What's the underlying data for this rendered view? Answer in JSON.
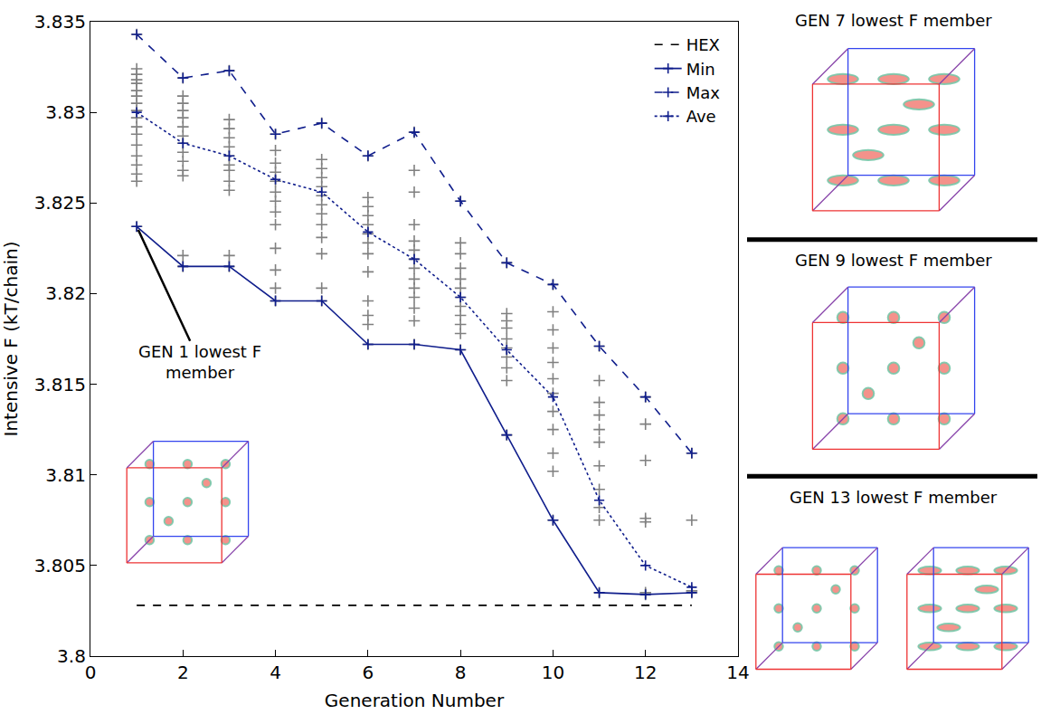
{
  "chart_data": {
    "type": "line",
    "x_label": "Generation Number",
    "y_label": "Intensive F (kT/chain)",
    "xlim": [
      0,
      14
    ],
    "xticks": [
      0,
      2,
      4,
      6,
      8,
      10,
      12,
      14
    ],
    "ylim": [
      3.8,
      3.835
    ],
    "yticks": [
      3.8,
      3.805,
      3.81,
      3.815,
      3.82,
      3.825,
      3.83,
      3.835
    ],
    "grid": false,
    "legend": "upper right",
    "series": [
      {
        "type": "scatter",
        "color": "#808080",
        "marker": "cross",
        "line_style": "none",
        "x": [
          1,
          1,
          1,
          1,
          1,
          1,
          1,
          1,
          1,
          1,
          1,
          1,
          1,
          1,
          1,
          1,
          1,
          1,
          2,
          2,
          2,
          2,
          2,
          2,
          2,
          2,
          2,
          2,
          2,
          2,
          2,
          2,
          3,
          3,
          3,
          3,
          3,
          3,
          3,
          3,
          3,
          3,
          3,
          3,
          4,
          4,
          4,
          4,
          4,
          4,
          4,
          4,
          4,
          4,
          4,
          4,
          4,
          5,
          5,
          5,
          5,
          5,
          5,
          5,
          5,
          5,
          5,
          5,
          5,
          5,
          6,
          6,
          6,
          6,
          6,
          6,
          6,
          6,
          6,
          6,
          6,
          6,
          6,
          7,
          7,
          7,
          7,
          7,
          7,
          7,
          7,
          7,
          7,
          7,
          7,
          7,
          7,
          8,
          8,
          8,
          8,
          8,
          8,
          8,
          8,
          8,
          8,
          8,
          8,
          9,
          9,
          9,
          9,
          9,
          9,
          9,
          9,
          9,
          9,
          10,
          10,
          10,
          10,
          10,
          10,
          10,
          10,
          10,
          10,
          10,
          10,
          11,
          11,
          11,
          11,
          11,
          11,
          11,
          11,
          11,
          11,
          11,
          12,
          12,
          12,
          12,
          12,
          12,
          12,
          13,
          13,
          13,
          13
        ],
        "values": [
          3.8237,
          3.8262,
          3.8266,
          3.8271,
          3.8276,
          3.8282,
          3.8288,
          3.8292,
          3.8297,
          3.8301,
          3.8305,
          3.8309,
          3.8312,
          3.8316,
          3.8318,
          3.8321,
          3.8324,
          3.8343,
          3.8215,
          3.8221,
          3.8265,
          3.8268,
          3.8273,
          3.8278,
          3.8283,
          3.8287,
          3.8292,
          3.8297,
          3.8301,
          3.8305,
          3.8309,
          3.8319,
          3.8215,
          3.8221,
          3.8257,
          3.8262,
          3.8268,
          3.8271,
          3.8276,
          3.8281,
          3.8286,
          3.8291,
          3.8296,
          3.8323,
          3.8196,
          3.8203,
          3.8213,
          3.8225,
          3.8238,
          3.8245,
          3.8251,
          3.8256,
          3.8262,
          3.8267,
          3.8272,
          3.8279,
          3.8288,
          3.8196,
          3.8203,
          3.8222,
          3.8231,
          3.8238,
          3.8244,
          3.8249,
          3.8254,
          3.8259,
          3.8264,
          3.8269,
          3.8274,
          3.8294,
          3.8172,
          3.8183,
          3.8188,
          3.8196,
          3.8212,
          3.8222,
          3.8228,
          3.8233,
          3.8238,
          3.8243,
          3.8248,
          3.8253,
          3.8276,
          3.8172,
          3.8185,
          3.8192,
          3.8198,
          3.8203,
          3.8208,
          3.8214,
          3.8219,
          3.8224,
          3.8229,
          3.8238,
          3.8256,
          3.8268,
          3.8289,
          3.8169,
          3.8178,
          3.8183,
          3.8188,
          3.8193,
          3.8198,
          3.8203,
          3.8208,
          3.8214,
          3.8222,
          3.8228,
          3.8251,
          3.8122,
          3.8152,
          3.8159,
          3.8165,
          3.817,
          3.8175,
          3.8181,
          3.8185,
          3.8189,
          3.8217,
          3.8075,
          3.8102,
          3.8112,
          3.8125,
          3.8135,
          3.8145,
          3.8153,
          3.8162,
          3.817,
          3.818,
          3.819,
          3.8205,
          3.8035,
          3.8075,
          3.8082,
          3.8092,
          3.8105,
          3.8118,
          3.8125,
          3.8133,
          3.814,
          3.8152,
          3.8171,
          3.8034,
          3.8035,
          3.8074,
          3.8076,
          3.8108,
          3.8128,
          3.8143,
          3.8035,
          3.8036,
          3.8075,
          3.8112
        ]
      },
      {
        "name": "HEX",
        "color": "#000000",
        "marker": "none",
        "line_style": "dashed",
        "x": [
          1,
          13
        ],
        "values": [
          3.8028,
          3.8028
        ]
      },
      {
        "name": "Min",
        "color": "#101e8c",
        "marker": "cross",
        "line_style": "solid",
        "x": [
          1,
          2,
          3,
          4,
          5,
          6,
          7,
          8,
          9,
          10,
          11,
          12,
          13
        ],
        "values": [
          3.8237,
          3.8215,
          3.8215,
          3.8196,
          3.8196,
          3.8172,
          3.8172,
          3.8169,
          3.8122,
          3.8075,
          3.8035,
          3.8034,
          3.8035
        ]
      },
      {
        "name": "Max",
        "color": "#101e8c",
        "marker": "cross",
        "line_style": "dashed",
        "x": [
          1,
          2,
          3,
          4,
          5,
          6,
          7,
          8,
          9,
          10,
          11,
          12,
          13
        ],
        "values": [
          3.8343,
          3.8319,
          3.8323,
          3.8288,
          3.8294,
          3.8276,
          3.8289,
          3.8251,
          3.8217,
          3.8205,
          3.8171,
          3.8143,
          3.8112
        ]
      },
      {
        "name": "Ave",
        "color": "#101e8c",
        "marker": "cross",
        "line_style": "dotted",
        "x": [
          1,
          2,
          3,
          4,
          5,
          6,
          7,
          8,
          9,
          10,
          11,
          12,
          13
        ],
        "values": [
          3.83,
          3.8283,
          3.8276,
          3.8263,
          3.8256,
          3.8234,
          3.8219,
          3.8198,
          3.8169,
          3.8143,
          3.8086,
          3.805,
          3.8038
        ]
      }
    ],
    "annotations": [
      {
        "text": "GEN 1 lowest F member",
        "x": 1,
        "y": 3.8237
      }
    ],
    "panel_titles": [
      "GEN 7 lowest F member",
      "GEN 9 lowest F member",
      "GEN 13 lowest F member"
    ]
  }
}
